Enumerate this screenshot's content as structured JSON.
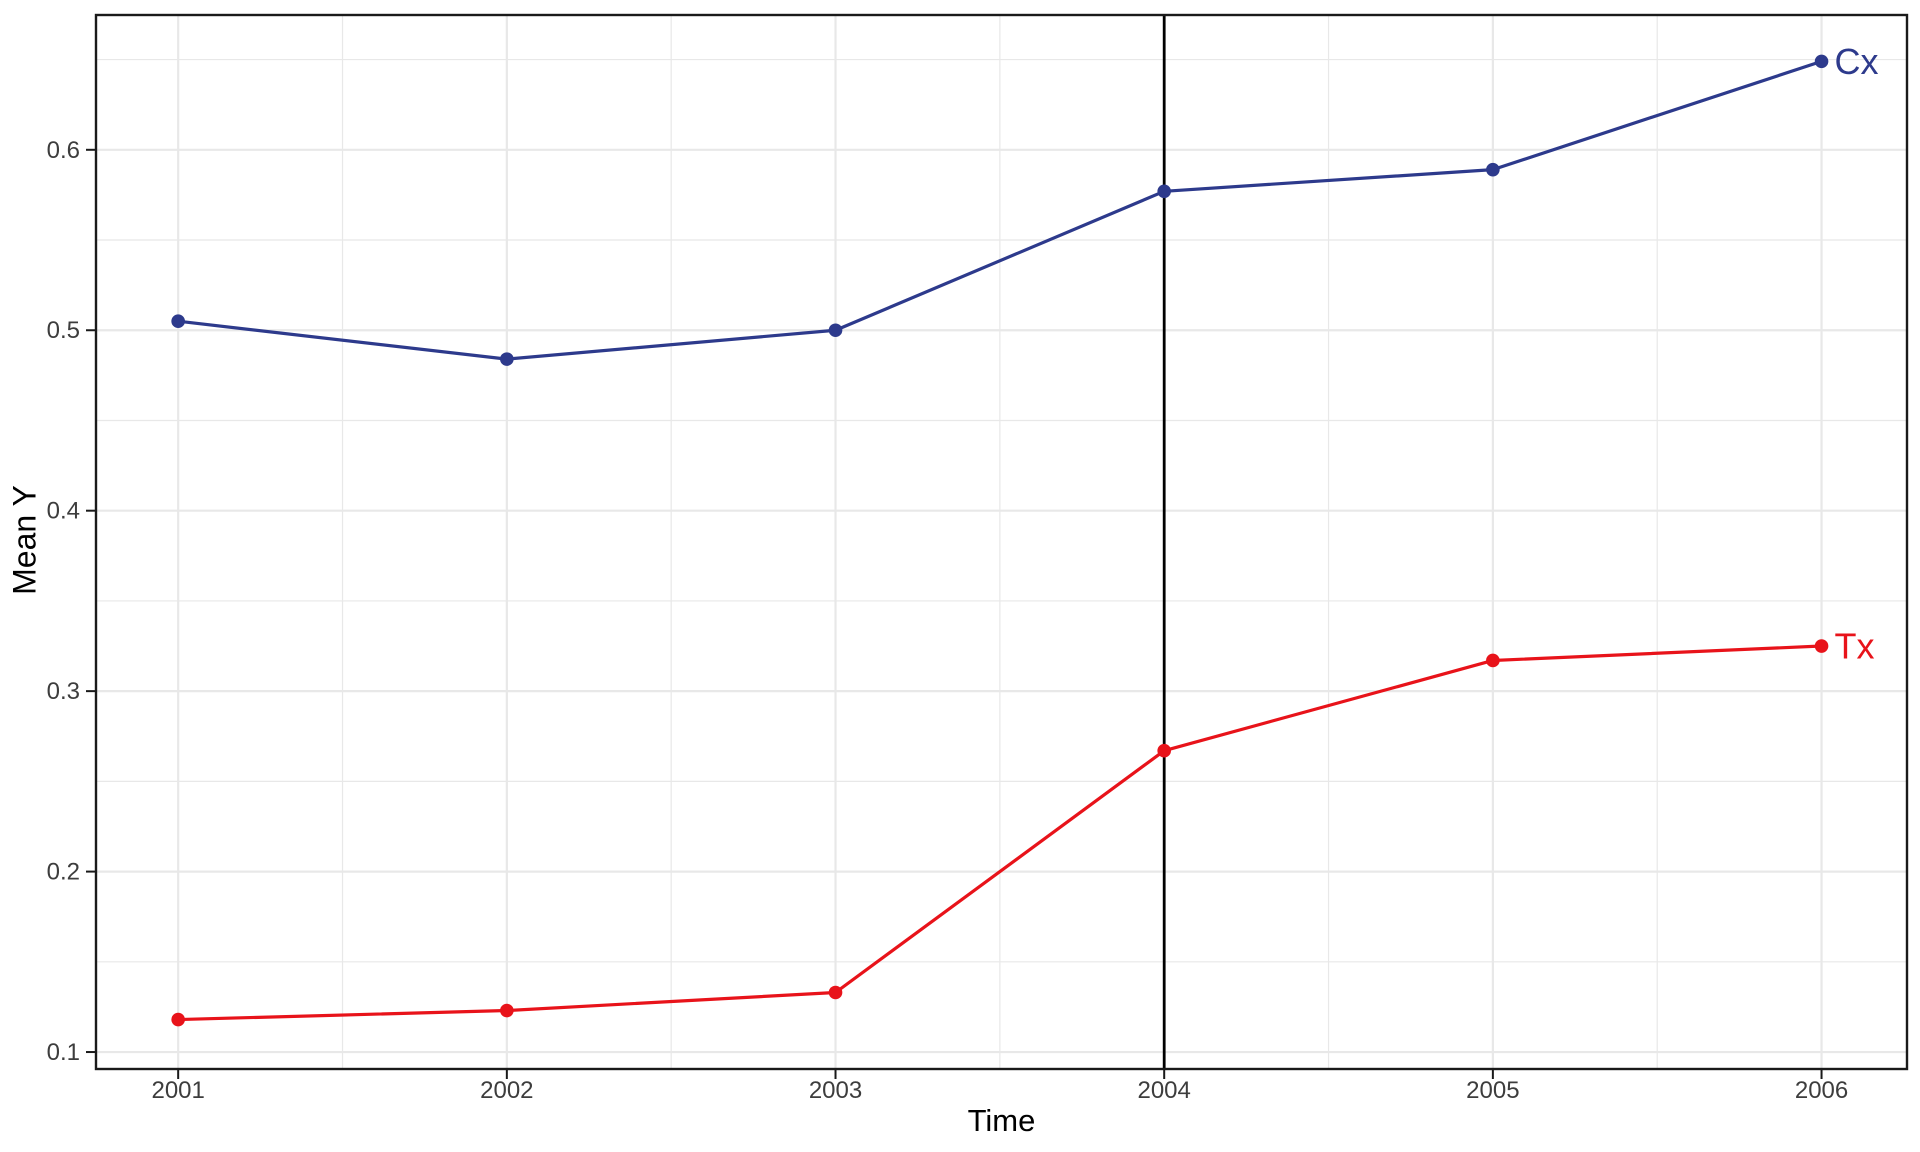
{
  "chart_data": {
    "type": "line",
    "title": "",
    "xlabel": "Time",
    "ylabel": "Mean Y",
    "x": [
      2001,
      2002,
      2003,
      2004,
      2005,
      2006
    ],
    "series": [
      {
        "name": "Cx",
        "label": "Cx",
        "color": "#2D3A8C",
        "values": [
          0.505,
          0.484,
          0.5,
          0.577,
          0.589,
          0.649
        ]
      },
      {
        "name": "Tx",
        "label": "Tx",
        "color": "#E8131A",
        "values": [
          0.118,
          0.123,
          0.133,
          0.267,
          0.317,
          0.325
        ]
      }
    ],
    "vline": {
      "x": 2004,
      "color": "#000000"
    },
    "x_tick_values": [
      2001,
      2002,
      2003,
      2004,
      2005,
      2006
    ],
    "x_tick_labels": [
      "2001",
      "2002",
      "2003",
      "2004",
      "2005",
      "2006"
    ],
    "y_tick_values": [
      0.1,
      0.2,
      0.3,
      0.4,
      0.5,
      0.6
    ],
    "y_tick_labels": [
      "0.1",
      "0.2",
      "0.3",
      "0.4",
      "0.5",
      "0.6"
    ],
    "x_minor_values": [
      2001.5,
      2002.5,
      2003.5,
      2004.5,
      2005.5
    ],
    "y_minor_values": [
      0.15,
      0.25,
      0.35,
      0.45,
      0.55,
      0.65
    ],
    "xlim": [
      2000.75,
      2006.26
    ],
    "ylim": [
      0.0906,
      0.6747
    ],
    "grid": {
      "major": true,
      "minor": true
    },
    "legend": "direct-labels-at-line-end",
    "theme": {
      "panel_background": "#FFFFFF",
      "panel_border_color": "#1A1A1A",
      "grid_color": "#E8E8E8",
      "tick_mark_color": "#1A1A1A",
      "axis_text_color": "#3D3D3D",
      "axis_title_color": "#000000"
    }
  }
}
